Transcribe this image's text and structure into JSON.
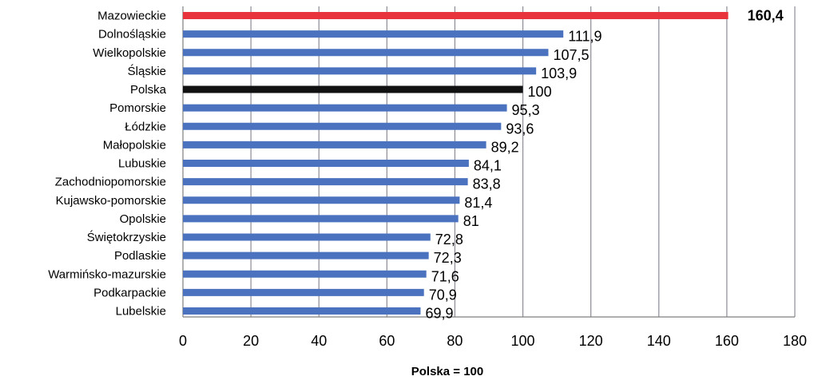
{
  "chart_data": {
    "type": "bar",
    "orientation": "horizontal",
    "title": "",
    "xlabel": "Polska = 100",
    "ylabel": "",
    "xlim": [
      0,
      180
    ],
    "xticks": [
      0,
      20,
      40,
      60,
      80,
      100,
      120,
      140,
      160,
      180
    ],
    "grid": true,
    "categories": [
      "Mazowieckie",
      "Dolnośląskie",
      "Wielkopolskie",
      "Śląskie",
      "Polska",
      "Pomorskie",
      "Łódzkie",
      "Małopolskie",
      "Lubuskie",
      "Zachodniopomorskie",
      "Kujawsko-pomorskie",
      "Opolskie",
      "Świętokrzyskie",
      "Podlaskie",
      "Warmińsko-mazurskie",
      "Podkarpackie",
      "Lubelskie"
    ],
    "values": [
      160.4,
      111.9,
      107.5,
      103.9,
      100,
      95.3,
      93.6,
      89.2,
      84.1,
      83.8,
      81.4,
      81,
      72.8,
      72.3,
      71.6,
      70.9,
      69.9
    ],
    "value_labels": [
      "160,4",
      "111,9",
      "107,5",
      "103,9",
      "100",
      "95,3",
      "93,6",
      "89,2",
      "84,1",
      "83,8",
      "81,4",
      "81",
      "72,8",
      "72,3",
      "71,6",
      "70,9",
      "69,9"
    ],
    "bar_colors": [
      "#e8323c",
      "#4a72bf",
      "#4a72bf",
      "#4a72bf",
      "#111111",
      "#4a72bf",
      "#4a72bf",
      "#4a72bf",
      "#4a72bf",
      "#4a72bf",
      "#4a72bf",
      "#4a72bf",
      "#4a72bf",
      "#4a72bf",
      "#4a72bf",
      "#4a72bf",
      "#4a72bf"
    ],
    "highlight_bold": [
      true,
      false,
      false,
      false,
      false,
      false,
      false,
      false,
      false,
      false,
      false,
      false,
      false,
      false,
      false,
      false,
      false
    ]
  }
}
